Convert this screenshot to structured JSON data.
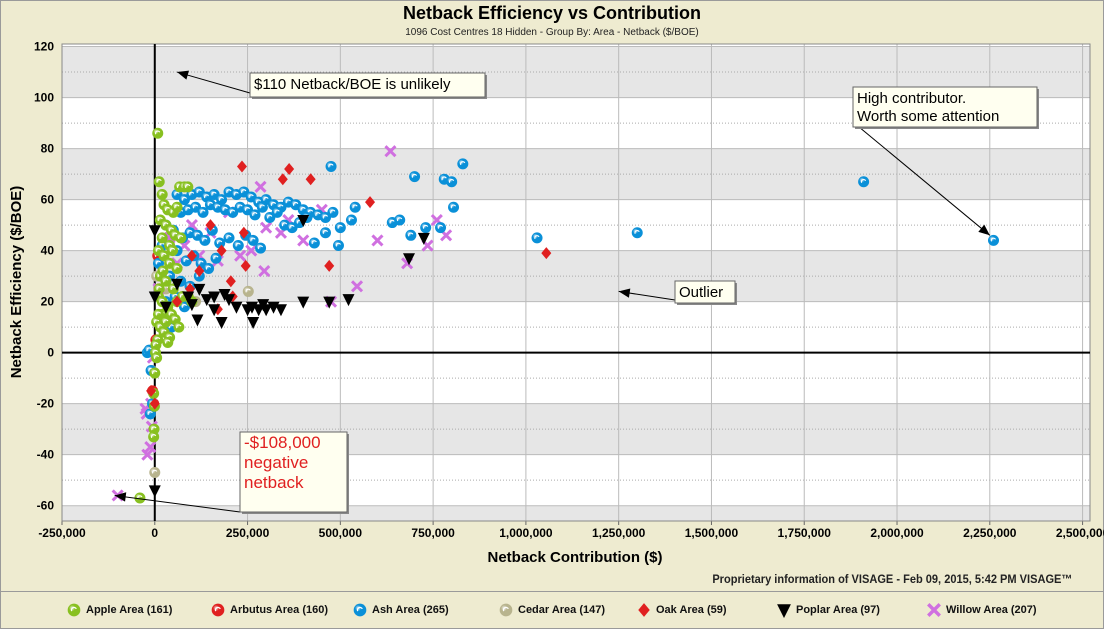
{
  "chart_data": {
    "type": "scatter",
    "title": "Netback Efficiency vs Contribution",
    "subtitle": "1096 Cost Centres 18 Hidden - Group By: Area - Netback ($/BOE)",
    "xlabel": "Netback Contribution ($)",
    "ylabel": "Netback Efficiency ($/BOE)",
    "xlim": [
      -250000,
      2520000
    ],
    "ylim": [
      -66,
      121
    ],
    "x_ticks": [
      "-250,000",
      "0",
      "250,000",
      "500,000",
      "750,000",
      "1,000,000",
      "1,250,000",
      "1,500,000",
      "1,750,000",
      "2,000,000",
      "2,250,000",
      "2,500,000"
    ],
    "x_tick_values": [
      -250000,
      0,
      250000,
      500000,
      750000,
      1000000,
      1250000,
      1500000,
      1750000,
      2000000,
      2250000,
      2500000
    ],
    "y_ticks": [
      "-60",
      "-40",
      "-20",
      "0",
      "20",
      "40",
      "60",
      "80",
      "100",
      "120"
    ],
    "y_tick_values": [
      -60,
      -40,
      -20,
      0,
      20,
      40,
      60,
      80,
      100,
      120
    ],
    "grid": true,
    "legend_position": "bottom",
    "footer": "Proprietary information of VISAGE - Feb 09, 2015, 5:42 PM  VISAGE™",
    "series": [
      {
        "name": "Arbutus Area (160)",
        "marker": "circle",
        "color": "#E02020",
        "points": [
          [
            -3000,
            -20
          ],
          [
            8000,
            38
          ],
          [
            12000,
            25
          ],
          [
            -6000,
            -15
          ],
          [
            20000,
            30
          ],
          [
            3000,
            5
          ]
        ]
      },
      {
        "name": "Cedar Area (147)",
        "marker": "circle",
        "color": "#B8B48E",
        "points": [
          [
            0,
            -47
          ],
          [
            252000,
            24
          ],
          [
            110000,
            20
          ],
          [
            5000,
            30
          ],
          [
            -8000,
            -7
          ],
          [
            30000,
            25
          ],
          [
            20000,
            10
          ],
          [
            2000,
            -1
          ]
        ]
      },
      {
        "name": "Willow Area (207)",
        "marker": "x",
        "color": "#D070E0",
        "points": [
          [
            -100000,
            -56
          ],
          [
            635000,
            79
          ],
          [
            285000,
            65
          ],
          [
            600000,
            44
          ],
          [
            680000,
            35
          ],
          [
            735000,
            42
          ],
          [
            760000,
            52
          ],
          [
            785000,
            46
          ],
          [
            545000,
            26
          ],
          [
            475000,
            20
          ],
          [
            295000,
            32
          ],
          [
            300000,
            49
          ],
          [
            340000,
            47
          ],
          [
            400000,
            44
          ],
          [
            360000,
            52
          ],
          [
            -20000,
            -40
          ],
          [
            -12000,
            -37
          ],
          [
            -22000,
            -24
          ],
          [
            -8000,
            -29
          ],
          [
            -10000,
            -20
          ],
          [
            -25000,
            -22
          ],
          [
            150000,
            47
          ],
          [
            120000,
            38
          ],
          [
            200000,
            55
          ],
          [
            260000,
            40
          ],
          [
            80000,
            42
          ],
          [
            60000,
            35
          ],
          [
            40000,
            45
          ],
          [
            100000,
            50
          ],
          [
            170000,
            36
          ],
          [
            230000,
            38
          ],
          [
            450000,
            56
          ],
          [
            10000,
            25
          ],
          [
            -5000,
            -2
          ]
        ]
      },
      {
        "name": "Ash Area (265)",
        "marker": "circle",
        "color": "#0A90D8",
        "points": [
          [
            475000,
            73
          ],
          [
            700000,
            69
          ],
          [
            780000,
            68
          ],
          [
            800000,
            67
          ],
          [
            830000,
            74
          ],
          [
            805000,
            57
          ],
          [
            540000,
            57
          ],
          [
            530000,
            52
          ],
          [
            640000,
            51
          ],
          [
            660000,
            52
          ],
          [
            690000,
            46
          ],
          [
            730000,
            49
          ],
          [
            770000,
            49
          ],
          [
            1030000,
            45
          ],
          [
            1300000,
            47
          ],
          [
            1910000,
            67
          ],
          [
            2260000,
            44
          ],
          [
            500000,
            49
          ],
          [
            -20000,
            0
          ],
          [
            -10000,
            -7
          ],
          [
            -12000,
            -24
          ],
          [
            -6000,
            -20
          ],
          [
            60000,
            62
          ],
          [
            80000,
            60
          ],
          [
            100000,
            62
          ],
          [
            120000,
            63
          ],
          [
            140000,
            61
          ],
          [
            160000,
            62
          ],
          [
            180000,
            60
          ],
          [
            200000,
            63
          ],
          [
            220000,
            62
          ],
          [
            240000,
            63
          ],
          [
            260000,
            61
          ],
          [
            280000,
            59
          ],
          [
            300000,
            60
          ],
          [
            320000,
            58
          ],
          [
            340000,
            57
          ],
          [
            360000,
            59
          ],
          [
            380000,
            58
          ],
          [
            400000,
            56
          ],
          [
            420000,
            55
          ],
          [
            440000,
            54
          ],
          [
            460000,
            53
          ],
          [
            480000,
            55
          ],
          [
            70000,
            55
          ],
          [
            90000,
            56
          ],
          [
            110000,
            57
          ],
          [
            130000,
            55
          ],
          [
            150000,
            58
          ],
          [
            170000,
            57
          ],
          [
            190000,
            56
          ],
          [
            210000,
            55
          ],
          [
            230000,
            57
          ],
          [
            250000,
            56
          ],
          [
            270000,
            54
          ],
          [
            290000,
            57
          ],
          [
            310000,
            53
          ],
          [
            330000,
            55
          ],
          [
            350000,
            50
          ],
          [
            370000,
            49
          ],
          [
            390000,
            51
          ],
          [
            410000,
            53
          ],
          [
            430000,
            43
          ],
          [
            460000,
            47
          ],
          [
            495000,
            42
          ],
          [
            30000,
            50
          ],
          [
            50000,
            48
          ],
          [
            75000,
            45
          ],
          [
            95000,
            47
          ],
          [
            115000,
            46
          ],
          [
            135000,
            44
          ],
          [
            155000,
            48
          ],
          [
            175000,
            43
          ],
          [
            200000,
            45
          ],
          [
            225000,
            42
          ],
          [
            245000,
            46
          ],
          [
            265000,
            44
          ],
          [
            285000,
            41
          ],
          [
            60000,
            40
          ],
          [
            85000,
            36
          ],
          [
            105000,
            38
          ],
          [
            125000,
            35
          ],
          [
            145000,
            33
          ],
          [
            165000,
            37
          ],
          [
            40000,
            30
          ],
          [
            70000,
            28
          ],
          [
            95000,
            26
          ],
          [
            120000,
            30
          ],
          [
            30000,
            20
          ],
          [
            55000,
            22
          ],
          [
            80000,
            18
          ],
          [
            20000,
            12
          ],
          [
            45000,
            10
          ],
          [
            10000,
            35
          ],
          [
            20000,
            42
          ],
          [
            -15000,
            1
          ]
        ]
      },
      {
        "name": "Apple Area (161)",
        "marker": "circle",
        "color": "#88C020",
        "points": [
          [
            8000,
            86
          ],
          [
            12000,
            67
          ],
          [
            67000,
            65
          ],
          [
            80000,
            65
          ],
          [
            89000,
            65
          ],
          [
            20000,
            62
          ],
          [
            25000,
            58
          ],
          [
            35000,
            56
          ],
          [
            50000,
            55
          ],
          [
            60000,
            57
          ],
          [
            15000,
            52
          ],
          [
            30000,
            50
          ],
          [
            45000,
            48
          ],
          [
            55000,
            46
          ],
          [
            70000,
            45
          ],
          [
            20000,
            45
          ],
          [
            10000,
            40
          ],
          [
            25000,
            38
          ],
          [
            40000,
            35
          ],
          [
            60000,
            33
          ],
          [
            15000,
            30
          ],
          [
            30000,
            28
          ],
          [
            50000,
            25
          ],
          [
            10000,
            22
          ],
          [
            20000,
            20
          ],
          [
            35000,
            18
          ],
          [
            45000,
            15
          ],
          [
            55000,
            13
          ],
          [
            5000,
            12
          ],
          [
            15000,
            10
          ],
          [
            25000,
            8
          ],
          [
            40000,
            6
          ],
          [
            8000,
            5
          ],
          [
            3000,
            3
          ],
          [
            20000,
            15
          ],
          [
            30000,
            12
          ],
          [
            60000,
            20
          ],
          [
            75000,
            22
          ],
          [
            100000,
            20
          ],
          [
            2000,
            0
          ],
          [
            0,
            -8
          ],
          [
            -3000,
            -16
          ],
          [
            -1000,
            -21
          ],
          [
            -2000,
            -30
          ],
          [
            -3000,
            -33
          ],
          [
            -40000,
            -57
          ],
          [
            5000,
            -2
          ],
          [
            12000,
            25
          ],
          [
            40000,
            42
          ],
          [
            90000,
            22
          ],
          [
            65000,
            10
          ],
          [
            35000,
            4
          ],
          [
            10000,
            15
          ],
          [
            22000,
            32
          ],
          [
            48000,
            40
          ]
        ]
      },
      {
        "name": "Oak Area (59)",
        "marker": "diamond",
        "color": "#E02020",
        "points": [
          [
            235000,
            73
          ],
          [
            362000,
            72
          ],
          [
            345000,
            68
          ],
          [
            420000,
            68
          ],
          [
            580000,
            59
          ],
          [
            1055000,
            39
          ],
          [
            470000,
            34
          ],
          [
            245000,
            34
          ],
          [
            205000,
            28
          ],
          [
            210000,
            22
          ],
          [
            170000,
            17
          ],
          [
            100000,
            38
          ],
          [
            60000,
            20
          ],
          [
            -10000,
            -15
          ],
          [
            0,
            -20
          ],
          [
            150000,
            50
          ],
          [
            240000,
            47
          ],
          [
            120000,
            32
          ],
          [
            95000,
            25
          ],
          [
            180000,
            40
          ]
        ]
      },
      {
        "name": "Poplar Area (97)",
        "marker": "triangle",
        "color": "#000000",
        "points": [
          [
            0,
            48
          ],
          [
            0,
            -54
          ],
          [
            60000,
            27
          ],
          [
            90000,
            22
          ],
          [
            120000,
            25
          ],
          [
            115000,
            13
          ],
          [
            160000,
            17
          ],
          [
            180000,
            12
          ],
          [
            200000,
            21
          ],
          [
            220000,
            18
          ],
          [
            250000,
            17
          ],
          [
            262000,
            18
          ],
          [
            280000,
            17
          ],
          [
            292000,
            19
          ],
          [
            300000,
            17
          ],
          [
            320000,
            18
          ],
          [
            340000,
            17
          ],
          [
            400000,
            20
          ],
          [
            522000,
            21
          ],
          [
            470000,
            20
          ],
          [
            685000,
            37
          ],
          [
            725000,
            45
          ],
          [
            400000,
            52
          ],
          [
            160000,
            22
          ],
          [
            140000,
            21
          ],
          [
            0,
            22
          ],
          [
            30000,
            18
          ],
          [
            265000,
            12
          ],
          [
            188000,
            23
          ],
          [
            100000,
            19
          ]
        ]
      }
    ],
    "legend": [
      {
        "name": "Apple Area (161)",
        "marker": "circle",
        "color": "#88C020"
      },
      {
        "name": "Arbutus Area (160)",
        "marker": "circle",
        "color": "#E02020"
      },
      {
        "name": "Ash Area (265)",
        "marker": "circle",
        "color": "#0A90D8"
      },
      {
        "name": "Cedar Area (147)",
        "marker": "circle",
        "color": "#B8B48E"
      },
      {
        "name": "Oak Area (59)",
        "marker": "diamond",
        "color": "#E02020"
      },
      {
        "name": "Poplar Area (97)",
        "marker": "triangle",
        "color": "#000000"
      },
      {
        "name": "Willow Area (207)",
        "marker": "x",
        "color": "#D070E0"
      }
    ],
    "annotations": [
      {
        "text": "$110 Netback/BOE is unlikely",
        "color": "#000000",
        "target": [
          60000,
          110
        ]
      },
      {
        "text": "Outlier",
        "color": "#000000",
        "target": [
          1250000,
          24
        ]
      },
      {
        "text": "High contributor.\nWorth some attention",
        "color": "#000000",
        "target": [
          2250000,
          46
        ]
      },
      {
        "text": "-$108,000\nnegative\nnetback",
        "color": "#E02020",
        "target": [
          -108000,
          -56
        ]
      }
    ]
  }
}
